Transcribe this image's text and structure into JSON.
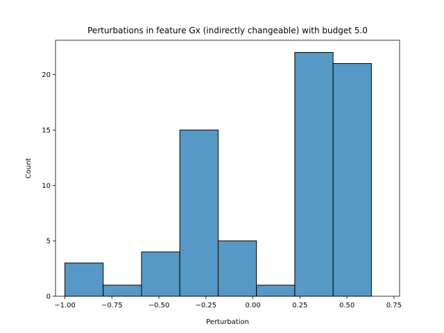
{
  "chart_data": {
    "type": "bar",
    "title": "Perturbations in feature Gx (indirectly changeable) with budget 5.0",
    "xlabel": "Perturbation",
    "ylabel": "Count",
    "xlim": [
      -1.05,
      0.78
    ],
    "ylim": [
      0,
      23.1
    ],
    "bar_color": "#5799c6",
    "edge_color": "#000000",
    "bins": [
      {
        "x0": -1.0,
        "x1": -0.7963,
        "count": 3
      },
      {
        "x0": -0.7963,
        "x1": -0.5925,
        "count": 1
      },
      {
        "x0": -0.5925,
        "x1": -0.3888,
        "count": 4
      },
      {
        "x0": -0.3888,
        "x1": -0.185,
        "count": 15
      },
      {
        "x0": -0.185,
        "x1": 0.0188,
        "count": 5
      },
      {
        "x0": 0.0188,
        "x1": 0.2225,
        "count": 1
      },
      {
        "x0": 0.2225,
        "x1": 0.4263,
        "count": 22
      },
      {
        "x0": 0.4263,
        "x1": 0.63,
        "count": 21
      }
    ],
    "xticks": [
      {
        "value": -1.0,
        "label": "−1.00"
      },
      {
        "value": -0.75,
        "label": "−0.75"
      },
      {
        "value": -0.5,
        "label": "−0.50"
      },
      {
        "value": -0.25,
        "label": "−0.25"
      },
      {
        "value": 0.0,
        "label": "0.00"
      },
      {
        "value": 0.25,
        "label": "0.25"
      },
      {
        "value": 0.5,
        "label": "0.50"
      },
      {
        "value": 0.75,
        "label": "0.75"
      }
    ],
    "yticks": [
      {
        "value": 0,
        "label": "0"
      },
      {
        "value": 5,
        "label": "5"
      },
      {
        "value": 10,
        "label": "10"
      },
      {
        "value": 15,
        "label": "15"
      },
      {
        "value": 20,
        "label": "20"
      }
    ]
  }
}
